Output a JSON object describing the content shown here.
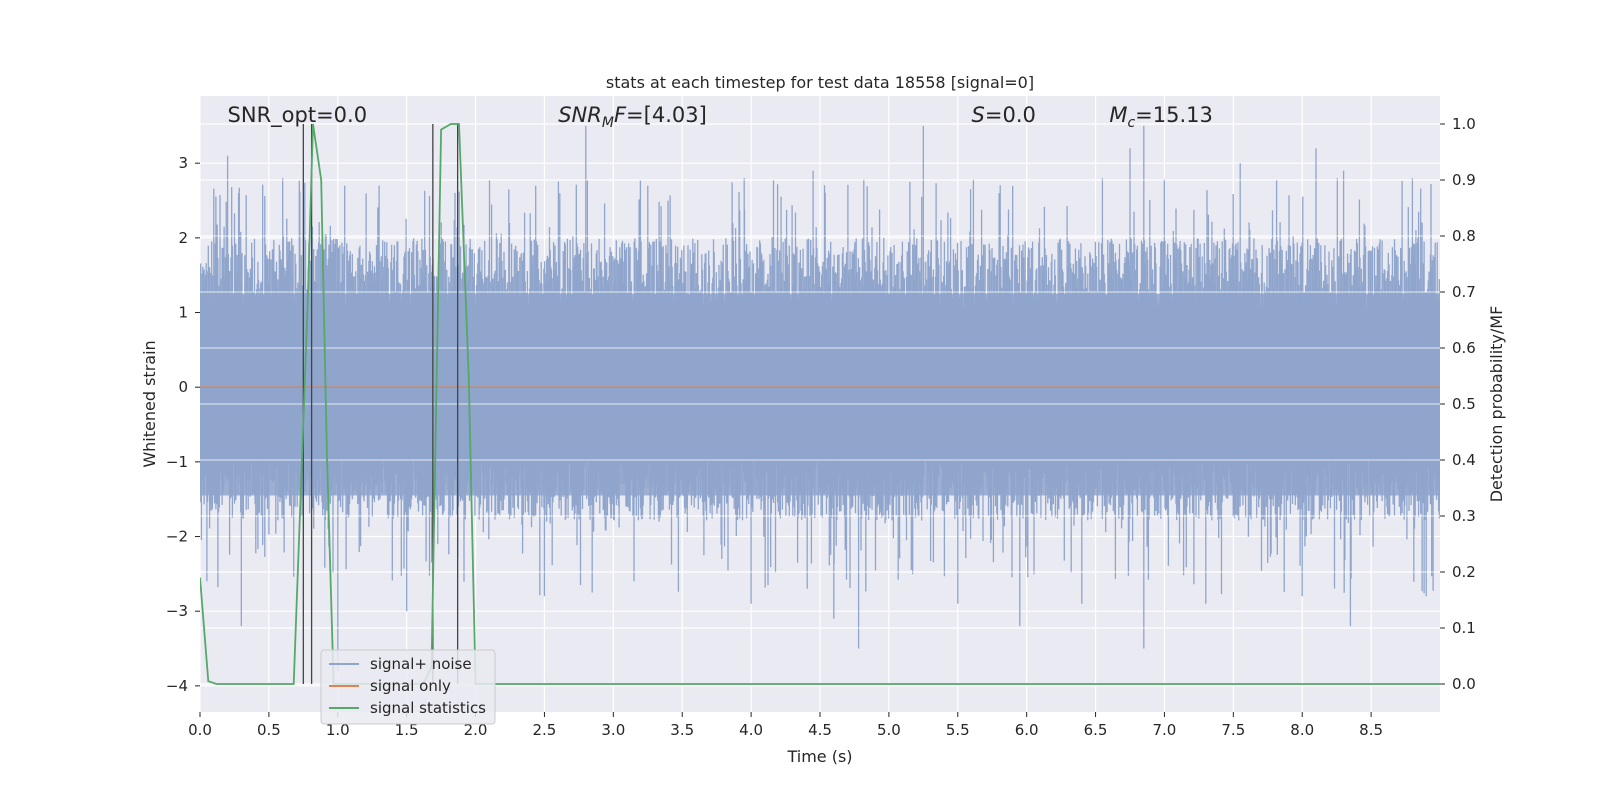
{
  "chart_data": {
    "type": "line",
    "title": "stats at each timestep for test data 18558 [signal=0]",
    "xlabel": "Time (s)",
    "ylabel_left": "Whitened strain",
    "ylabel_right": "Detection probability/MF",
    "xlim": [
      0.0,
      9.0
    ],
    "ylim_left": [
      -4.35,
      3.9
    ],
    "ylim_right": [
      -0.05,
      1.05
    ],
    "xticks": [
      0.0,
      0.5,
      1.0,
      1.5,
      2.0,
      2.5,
      3.0,
      3.5,
      4.0,
      4.5,
      5.0,
      5.5,
      6.0,
      6.5,
      7.0,
      7.5,
      8.0,
      8.5
    ],
    "xtick_labels": [
      "0.0",
      "0.5",
      "1.0",
      "1.5",
      "2.0",
      "2.5",
      "3.0",
      "3.5",
      "4.0",
      "4.5",
      "5.0",
      "5.5",
      "6.0",
      "6.5",
      "7.0",
      "7.5",
      "8.0",
      "8.5"
    ],
    "yticks_left": [
      -4,
      -3,
      -2,
      -1,
      0,
      1,
      2,
      3
    ],
    "ytick_labels_left": [
      "−4",
      "−3",
      "−2",
      "−1",
      "0",
      "1",
      "2",
      "3"
    ],
    "yticks_right": [
      0.0,
      0.1,
      0.2,
      0.3,
      0.4,
      0.5,
      0.6,
      0.7,
      0.8,
      0.9,
      1.0
    ],
    "ytick_labels_right": [
      "0.0",
      "0.1",
      "0.2",
      "0.3",
      "0.4",
      "0.5",
      "0.6",
      "0.7",
      "0.8",
      "0.9",
      "1.0"
    ],
    "grid": true,
    "legend_position": "lower-left",
    "annotations": [
      {
        "label": "SNR_opt=",
        "value": "0.0",
        "x": 0.2
      },
      {
        "label": "SNR_MF=",
        "value": "[4.03]",
        "x": 2.6
      },
      {
        "label": "S=",
        "value": "0.0",
        "x": 5.6
      },
      {
        "label": "M_c=",
        "value": "15.13",
        "x": 6.6
      }
    ],
    "series": [
      {
        "name": "signal+ noise",
        "axis": "left",
        "color": "#8fa5cc",
        "kind": "noise",
        "typical_range": [
          -1.7,
          1.9
        ],
        "peak_positive": [
          [
            0.2,
            3.1
          ],
          [
            0.28,
            2.6
          ],
          [
            0.6,
            2.8
          ],
          [
            1.05,
            2.7
          ],
          [
            1.3,
            2.7
          ],
          [
            2.8,
            3.5
          ],
          [
            3.25,
            2.7
          ],
          [
            3.95,
            2.8
          ],
          [
            4.45,
            2.9
          ],
          [
            5.25,
            3.5
          ],
          [
            5.8,
            2.6
          ],
          [
            6.55,
            2.8
          ],
          [
            6.75,
            3.2
          ],
          [
            6.85,
            3.5
          ],
          [
            7.55,
            3.0
          ],
          [
            8.1,
            3.2
          ],
          [
            8.3,
            2.9
          ],
          [
            8.8,
            2.8
          ]
        ],
        "peak_negative": [
          [
            0.05,
            -2.6
          ],
          [
            0.3,
            -3.2
          ],
          [
            1.0,
            -3.8
          ],
          [
            1.5,
            -3.0
          ],
          [
            2.5,
            -2.8
          ],
          [
            3.15,
            -2.6
          ],
          [
            4.0,
            -2.9
          ],
          [
            4.6,
            -3.1
          ],
          [
            4.78,
            -3.5
          ],
          [
            5.5,
            -2.9
          ],
          [
            5.95,
            -3.2
          ],
          [
            6.4,
            -2.9
          ],
          [
            6.85,
            -3.5
          ],
          [
            7.3,
            -2.9
          ],
          [
            8.0,
            -2.8
          ],
          [
            8.35,
            -3.2
          ],
          [
            8.9,
            -2.8
          ]
        ]
      },
      {
        "name": "signal only",
        "axis": "left",
        "color": "#dd8452",
        "x": [
          0.0,
          9.0
        ],
        "y": [
          0.0,
          0.0
        ]
      },
      {
        "name": "signal statistics",
        "axis": "right",
        "color": "#55a868",
        "x": [
          0.0,
          0.06,
          0.12,
          0.25,
          0.5,
          0.68,
          0.78,
          0.82,
          0.88,
          0.92,
          0.97,
          1.05,
          1.62,
          1.68,
          1.75,
          1.82,
          1.88,
          1.95,
          2.0,
          2.6,
          9.0
        ],
        "y": [
          0.19,
          0.005,
          0.0,
          0.0,
          0.0,
          0.0,
          0.67,
          1.0,
          0.9,
          0.42,
          0.0,
          0.0,
          0.0,
          0.03,
          0.99,
          1.0,
          1.0,
          0.55,
          0.0,
          0.0,
          0.0
        ]
      }
    ],
    "vertical_markers": [
      0.75,
      0.81,
      1.69,
      1.87
    ]
  }
}
